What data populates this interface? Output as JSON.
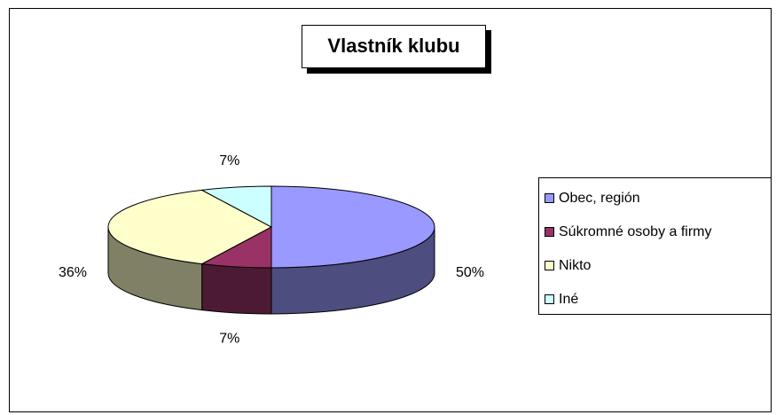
{
  "chart_data": {
    "type": "pie3d",
    "title": "Vlastník klubu",
    "categories": [
      "Obec, región",
      "Súkromné osoby a firmy",
      "Nikto",
      "Iné"
    ],
    "values": [
      50,
      7,
      36,
      7
    ],
    "value_labels": [
      "50%",
      "7%",
      "36%",
      "7%"
    ],
    "colors": [
      "#9999ff",
      "#993366",
      "#ffffcc",
      "#ccffff"
    ],
    "legend": "right"
  }
}
